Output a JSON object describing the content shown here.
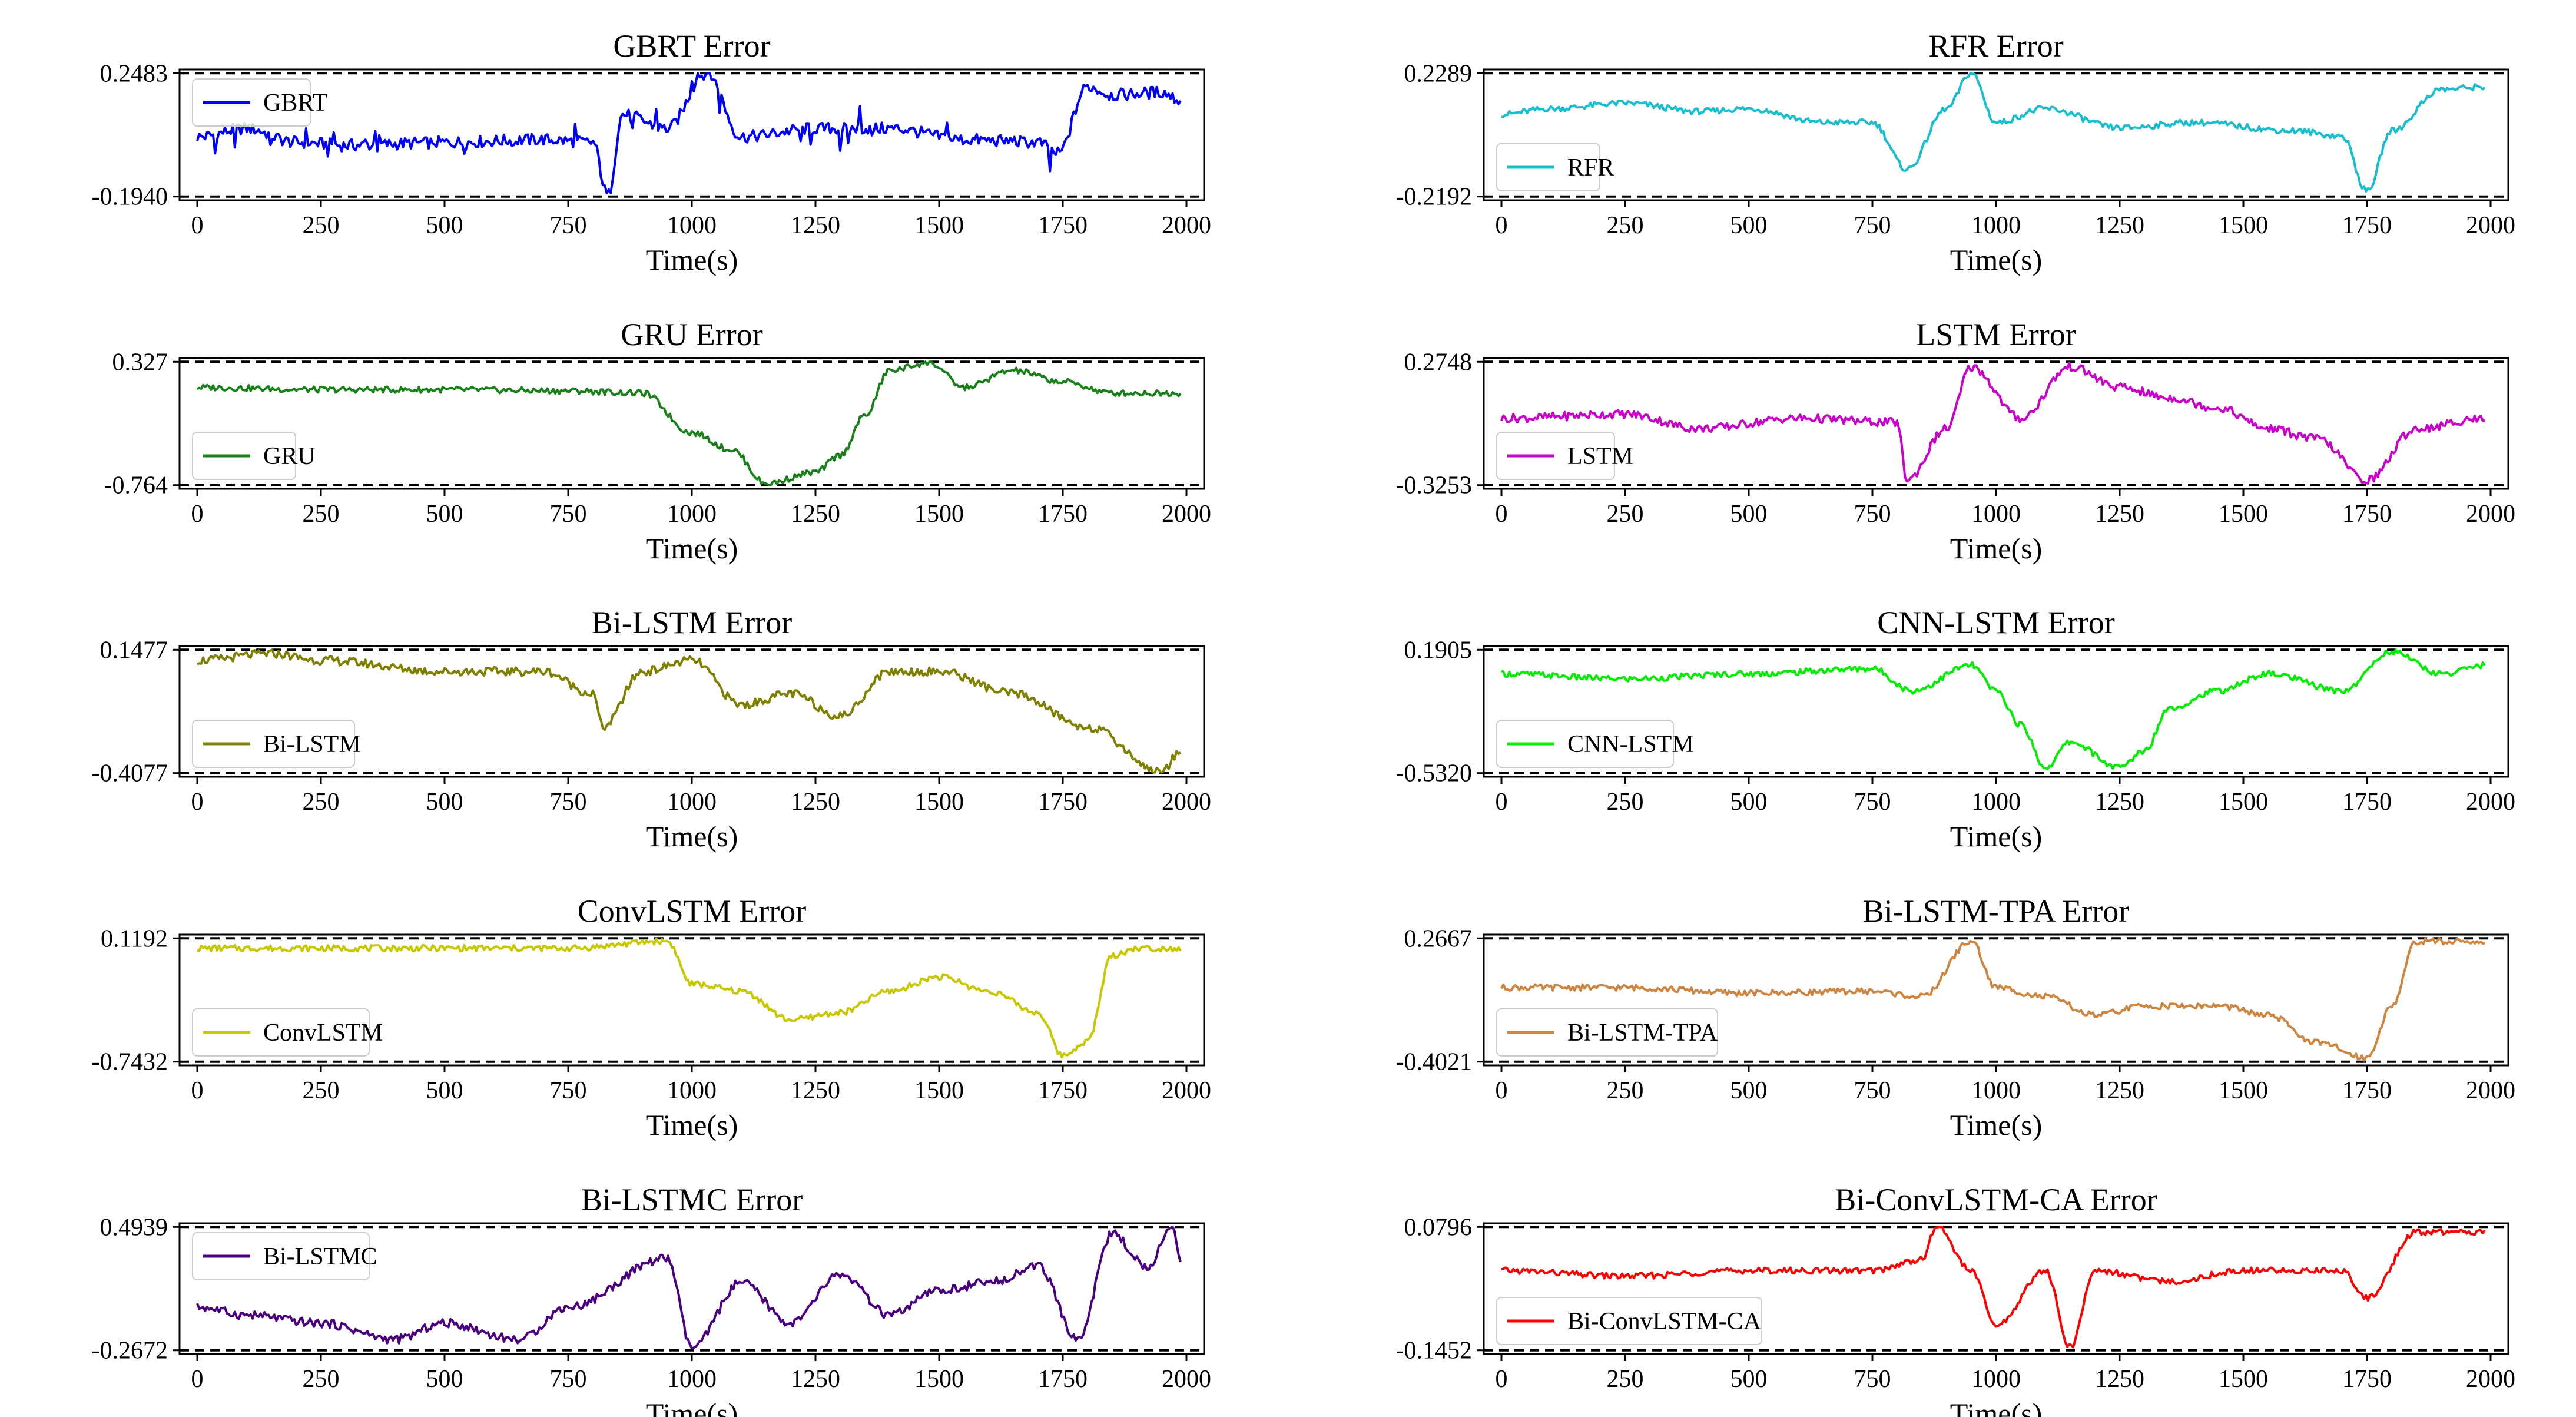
{
  "figure": {
    "panels": [
      {
        "title": "GBRT Error",
        "legend": "GBRT",
        "color": "#0000ff",
        "xlabel": "Time(s)"
      },
      {
        "title": "RFR Error",
        "legend": "RFR",
        "color": "#17becf",
        "xlabel": "Time(s)"
      },
      {
        "title": "GRU Error",
        "legend": "GRU",
        "color": "#1a801a",
        "xlabel": "Time(s)"
      },
      {
        "title": "LSTM Error",
        "legend": "LSTM",
        "color": "#cc00cc",
        "xlabel": "Time(s)"
      },
      {
        "title": "Bi-LSTM Error",
        "legend": "Bi-LSTM",
        "color": "#808000",
        "xlabel": "Time(s)"
      },
      {
        "title": "CNN-LSTM Error",
        "legend": "CNN-LSTM",
        "color": "#00ee00",
        "xlabel": "Time(s)"
      },
      {
        "title": "ConvLSTM Error",
        "legend": "ConvLSTM",
        "color": "#c8c800",
        "xlabel": "Time(s)"
      },
      {
        "title": "Bi-LSTM-TPA Error",
        "legend": "Bi-LSTM-TPA",
        "color": "#cd853f",
        "xlabel": "Time(s)"
      },
      {
        "title": "Bi-LSTMC Error",
        "legend": "Bi-LSTMC",
        "color": "#4b0082",
        "xlabel": "Time(s)"
      },
      {
        "title": "Bi-ConvLSTM-CA Error",
        "legend": "Bi-ConvLSTM-CA",
        "color": "#ff0000",
        "xlabel": "Time(s)"
      }
    ]
  },
  "chart_data": [
    {
      "type": "line",
      "title": "GBRT Error",
      "xlabel": "Time(s)",
      "ylabel": "",
      "series_name": "GBRT",
      "xlim": [
        0,
        2000
      ],
      "ylim": [
        -0.194,
        0.2483
      ],
      "y_ticks": [
        "0.2483",
        "-0.1940"
      ],
      "x_ticks": [
        "0",
        "250",
        "500",
        "750",
        "1000",
        "1250",
        "1500",
        "1750",
        "2000"
      ],
      "legend_position": "upper-left",
      "keypoints": [
        [
          0,
          0.02
        ],
        [
          100,
          0.05
        ],
        [
          200,
          0.0
        ],
        [
          300,
          -0.01
        ],
        [
          500,
          0.0
        ],
        [
          700,
          0.01
        ],
        [
          800,
          0.0
        ],
        [
          830,
          -0.19
        ],
        [
          860,
          0.1
        ],
        [
          950,
          0.05
        ],
        [
          1030,
          0.25
        ],
        [
          1100,
          0.02
        ],
        [
          1250,
          0.05
        ],
        [
          1400,
          0.05
        ],
        [
          1550,
          0.01
        ],
        [
          1700,
          0.0
        ],
        [
          1740,
          -0.04
        ],
        [
          1800,
          0.2
        ],
        [
          1850,
          0.17
        ],
        [
          1950,
          0.18
        ],
        [
          1990,
          0.15
        ]
      ],
      "style": "noisy-steps"
    },
    {
      "type": "line",
      "title": "RFR Error",
      "xlabel": "Time(s)",
      "ylabel": "",
      "series_name": "RFR",
      "xlim": [
        0,
        2000
      ],
      "ylim": [
        -0.2192,
        0.2289
      ],
      "y_ticks": [
        "0.2289",
        "-0.2192"
      ],
      "x_ticks": [
        "0",
        "250",
        "500",
        "750",
        "1000",
        "1250",
        "1500",
        "1750",
        "2000"
      ],
      "legend_position": "lower-left",
      "keypoints": [
        [
          0,
          0.08
        ],
        [
          100,
          0.1
        ],
        [
          250,
          0.12
        ],
        [
          400,
          0.09
        ],
        [
          500,
          0.1
        ],
        [
          650,
          0.05
        ],
        [
          750,
          0.05
        ],
        [
          820,
          -0.12
        ],
        [
          900,
          0.1
        ],
        [
          950,
          0.23
        ],
        [
          1000,
          0.05
        ],
        [
          1100,
          0.1
        ],
        [
          1250,
          0.03
        ],
        [
          1400,
          0.05
        ],
        [
          1600,
          0.02
        ],
        [
          1700,
          0.0
        ],
        [
          1750,
          -0.2
        ],
        [
          1800,
          0.02
        ],
        [
          1900,
          0.17
        ],
        [
          1990,
          0.18
        ]
      ],
      "style": "smooth"
    },
    {
      "type": "line",
      "title": "GRU Error",
      "xlabel": "Time(s)",
      "ylabel": "",
      "series_name": "GRU",
      "xlim": [
        0,
        2000
      ],
      "ylim": [
        -0.764,
        0.327
      ],
      "y_ticks": [
        "0.327",
        "-0.764"
      ],
      "x_ticks": [
        "0",
        "250",
        "500",
        "750",
        "1000",
        "1250",
        "1500",
        "1750",
        "2000"
      ],
      "legend_position": "lower-left",
      "keypoints": [
        [
          0,
          0.1
        ],
        [
          250,
          0.08
        ],
        [
          500,
          0.08
        ],
        [
          750,
          0.07
        ],
        [
          900,
          0.05
        ],
        [
          1000,
          -0.3
        ],
        [
          1080,
          -0.45
        ],
        [
          1150,
          -0.75
        ],
        [
          1250,
          -0.65
        ],
        [
          1300,
          -0.5
        ],
        [
          1350,
          -0.15
        ],
        [
          1400,
          0.25
        ],
        [
          1480,
          0.32
        ],
        [
          1550,
          0.1
        ],
        [
          1650,
          0.25
        ],
        [
          1750,
          0.15
        ],
        [
          1850,
          0.05
        ],
        [
          1990,
          0.05
        ]
      ],
      "style": "smooth"
    },
    {
      "type": "line",
      "title": "LSTM Error",
      "xlabel": "Time(s)",
      "ylabel": "",
      "series_name": "LSTM",
      "xlim": [
        0,
        2000
      ],
      "ylim": [
        -0.3253,
        0.2748
      ],
      "y_ticks": [
        "0.2748",
        "-0.3253"
      ],
      "x_ticks": [
        "0",
        "250",
        "500",
        "750",
        "1000",
        "1250",
        "1500",
        "1750",
        "2000"
      ],
      "legend_position": "lower-left",
      "keypoints": [
        [
          0,
          0.0
        ],
        [
          250,
          0.02
        ],
        [
          400,
          -0.05
        ],
        [
          600,
          0.0
        ],
        [
          800,
          -0.02
        ],
        [
          820,
          -0.3
        ],
        [
          900,
          -0.05
        ],
        [
          950,
          0.25
        ],
        [
          1050,
          0.0
        ],
        [
          1150,
          0.25
        ],
        [
          1250,
          0.15
        ],
        [
          1350,
          0.1
        ],
        [
          1450,
          0.05
        ],
        [
          1550,
          -0.05
        ],
        [
          1650,
          -0.1
        ],
        [
          1750,
          -0.3
        ],
        [
          1850,
          -0.05
        ],
        [
          1990,
          0.0
        ]
      ],
      "style": "oscillating"
    },
    {
      "type": "line",
      "title": "Bi-LSTM Error",
      "xlabel": "Time(s)",
      "ylabel": "",
      "series_name": "Bi-LSTM",
      "xlim": [
        0,
        2000
      ],
      "ylim": [
        -0.4077,
        0.1477
      ],
      "y_ticks": [
        "0.1477",
        "-0.4077"
      ],
      "x_ticks": [
        "0",
        "250",
        "500",
        "750",
        "1000",
        "1250",
        "1500",
        "1750",
        "2000"
      ],
      "legend_position": "lower-left",
      "keypoints": [
        [
          0,
          0.1
        ],
        [
          150,
          0.13
        ],
        [
          250,
          0.1
        ],
        [
          500,
          0.05
        ],
        [
          700,
          0.05
        ],
        [
          800,
          -0.05
        ],
        [
          820,
          -0.2
        ],
        [
          900,
          0.05
        ],
        [
          1000,
          0.1
        ],
        [
          1100,
          -0.1
        ],
        [
          1200,
          -0.05
        ],
        [
          1300,
          -0.15
        ],
        [
          1400,
          0.05
        ],
        [
          1500,
          0.05
        ],
        [
          1650,
          -0.05
        ],
        [
          1800,
          -0.2
        ],
        [
          1950,
          -0.4
        ],
        [
          1990,
          -0.3
        ]
      ],
      "style": "oscillating"
    },
    {
      "type": "line",
      "title": "CNN-LSTM Error",
      "xlabel": "Time(s)",
      "ylabel": "",
      "series_name": "CNN-LSTM",
      "xlim": [
        0,
        2000
      ],
      "ylim": [
        -0.532,
        0.1905
      ],
      "y_ticks": [
        "0.1905",
        "-0.5320"
      ],
      "x_ticks": [
        "0",
        "250",
        "500",
        "750",
        "1000",
        "1250",
        "1500",
        "1750",
        "2000"
      ],
      "legend_position": "lower-left",
      "keypoints": [
        [
          0,
          0.05
        ],
        [
          250,
          0.02
        ],
        [
          500,
          0.05
        ],
        [
          750,
          0.08
        ],
        [
          830,
          -0.05
        ],
        [
          950,
          0.1
        ],
        [
          1000,
          -0.05
        ],
        [
          1050,
          -0.25
        ],
        [
          1100,
          -0.5
        ],
        [
          1150,
          -0.35
        ],
        [
          1250,
          -0.5
        ],
        [
          1300,
          -0.4
        ],
        [
          1350,
          -0.15
        ],
        [
          1450,
          -0.05
        ],
        [
          1550,
          0.05
        ],
        [
          1700,
          -0.05
        ],
        [
          1800,
          0.18
        ],
        [
          1900,
          0.05
        ],
        [
          1990,
          0.1
        ]
      ],
      "style": "smooth"
    },
    {
      "type": "line",
      "title": "ConvLSTM Error",
      "xlabel": "Time(s)",
      "ylabel": "",
      "series_name": "ConvLSTM",
      "xlim": [
        0,
        2000
      ],
      "ylim": [
        -0.7432,
        0.1192
      ],
      "y_ticks": [
        "0.1192",
        "-0.7432"
      ],
      "x_ticks": [
        "0",
        "250",
        "500",
        "750",
        "1000",
        "1250",
        "1500",
        "1750",
        "2000"
      ],
      "legend_position": "lower-left",
      "keypoints": [
        [
          0,
          0.05
        ],
        [
          250,
          0.05
        ],
        [
          500,
          0.05
        ],
        [
          750,
          0.05
        ],
        [
          950,
          0.1
        ],
        [
          1000,
          -0.2
        ],
        [
          1100,
          -0.25
        ],
        [
          1200,
          -0.45
        ],
        [
          1300,
          -0.4
        ],
        [
          1400,
          -0.25
        ],
        [
          1500,
          -0.15
        ],
        [
          1600,
          -0.25
        ],
        [
          1700,
          -0.4
        ],
        [
          1750,
          -0.7
        ],
        [
          1800,
          -0.6
        ],
        [
          1850,
          0.0
        ],
        [
          1900,
          0.05
        ],
        [
          1990,
          0.05
        ]
      ],
      "style": "smooth"
    },
    {
      "type": "line",
      "title": "Bi-LSTM-TPA Error",
      "xlabel": "Time(s)",
      "ylabel": "",
      "series_name": "Bi-LSTM-TPA",
      "xlim": [
        0,
        2000
      ],
      "ylim": [
        -0.4021,
        0.2667
      ],
      "y_ticks": [
        "0.2667",
        "-0.4021"
      ],
      "x_ticks": [
        "0",
        "250",
        "500",
        "750",
        "1000",
        "1250",
        "1500",
        "1750",
        "2000"
      ],
      "legend_position": "lower-left",
      "keypoints": [
        [
          0,
          0.0
        ],
        [
          250,
          0.0
        ],
        [
          500,
          -0.03
        ],
        [
          750,
          -0.02
        ],
        [
          850,
          -0.05
        ],
        [
          950,
          0.25
        ],
        [
          1000,
          0.0
        ],
        [
          1100,
          -0.05
        ],
        [
          1200,
          -0.15
        ],
        [
          1300,
          -0.1
        ],
        [
          1450,
          -0.1
        ],
        [
          1550,
          -0.15
        ],
        [
          1650,
          -0.3
        ],
        [
          1750,
          -0.38
        ],
        [
          1800,
          -0.1
        ],
        [
          1850,
          0.25
        ],
        [
          1990,
          0.25
        ]
      ],
      "style": "smooth"
    },
    {
      "type": "line",
      "title": "Bi-LSTMC Error",
      "xlabel": "Time(s)",
      "ylabel": "",
      "series_name": "Bi-LSTMC",
      "xlim": [
        0,
        2000
      ],
      "ylim": [
        -0.2672,
        0.4939
      ],
      "y_ticks": [
        "0.4939",
        "-0.2672"
      ],
      "x_ticks": [
        "0",
        "250",
        "500",
        "750",
        "1000",
        "1250",
        "1500",
        "1750",
        "2000"
      ],
      "legend_position": "upper-left",
      "keypoints": [
        [
          0,
          0.0
        ],
        [
          100,
          -0.05
        ],
        [
          250,
          -0.1
        ],
        [
          400,
          -0.2
        ],
        [
          500,
          -0.1
        ],
        [
          650,
          -0.2
        ],
        [
          750,
          0.0
        ],
        [
          950,
          0.3
        ],
        [
          1000,
          -0.25
        ],
        [
          1100,
          0.15
        ],
        [
          1200,
          -0.1
        ],
        [
          1300,
          0.2
        ],
        [
          1400,
          -0.05
        ],
        [
          1500,
          0.1
        ],
        [
          1600,
          0.15
        ],
        [
          1700,
          0.25
        ],
        [
          1780,
          -0.2
        ],
        [
          1850,
          0.45
        ],
        [
          1920,
          0.25
        ],
        [
          1970,
          0.48
        ],
        [
          1990,
          0.3
        ]
      ],
      "style": "oscillating"
    },
    {
      "type": "line",
      "title": "Bi-ConvLSTM-CA Error",
      "xlabel": "Time(s)",
      "ylabel": "",
      "series_name": "Bi-ConvLSTM-CA",
      "xlim": [
        0,
        2000
      ],
      "ylim": [
        -0.1452,
        0.0796
      ],
      "y_ticks": [
        "0.0796",
        "-0.1452"
      ],
      "x_ticks": [
        "0",
        "250",
        "500",
        "750",
        "1000",
        "1250",
        "1500",
        "1750",
        "2000"
      ],
      "legend_position": "lower-left",
      "keypoints": [
        [
          0,
          0.0
        ],
        [
          250,
          -0.01
        ],
        [
          500,
          0.0
        ],
        [
          750,
          0.0
        ],
        [
          850,
          0.02
        ],
        [
          880,
          0.08
        ],
        [
          950,
          0.0
        ],
        [
          1000,
          -0.1
        ],
        [
          1100,
          0.0
        ],
        [
          1150,
          -0.14
        ],
        [
          1200,
          0.0
        ],
        [
          1350,
          -0.02
        ],
        [
          1500,
          0.0
        ],
        [
          1700,
          0.0
        ],
        [
          1750,
          -0.05
        ],
        [
          1850,
          0.07
        ],
        [
          1990,
          0.07
        ]
      ],
      "style": "smooth"
    }
  ]
}
